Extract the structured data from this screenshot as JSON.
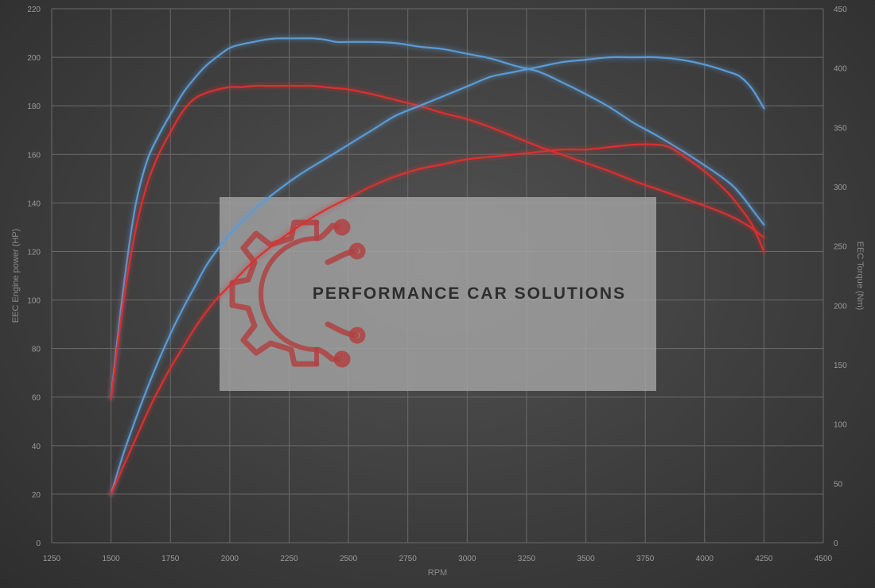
{
  "chart_data": {
    "type": "line",
    "xlabel": "RPM",
    "ylabel": "EEC Engine power (HP)",
    "y2label": "EEC Torque (Nm)",
    "xlim": [
      1250,
      4500
    ],
    "ylim": [
      0,
      220
    ],
    "y2lim": [
      0,
      450
    ],
    "x_ticks": [
      1250,
      1500,
      1750,
      2000,
      2250,
      2500,
      2750,
      3000,
      3250,
      3500,
      3750,
      4000,
      4250,
      4500
    ],
    "y_ticks": [
      0,
      20,
      40,
      60,
      80,
      100,
      120,
      140,
      160,
      180,
      200,
      220
    ],
    "y2_ticks": [
      0,
      50,
      100,
      150,
      200,
      250,
      300,
      350,
      400,
      450
    ],
    "grid": true,
    "series": [
      {
        "axis": "right",
        "color": "#5b9bd5",
        "x": [
          1500,
          1550,
          1600,
          1650,
          1700,
          1750,
          1800,
          1850,
          1900,
          1950,
          2000,
          2050,
          2100,
          2150,
          2200,
          2250,
          2300,
          2350,
          2400,
          2450,
          2500,
          2600,
          2700,
          2800,
          2900,
          3000,
          3100,
          3200,
          3300,
          3400,
          3500,
          3600,
          3700,
          3800,
          3900,
          4000,
          4100,
          4150,
          4200,
          4250
        ],
        "values": [
          123,
          211,
          281,
          321,
          343,
          361,
          378,
          391,
          402,
          410,
          417,
          420,
          422,
          424,
          425,
          425,
          425,
          425,
          424,
          422,
          422,
          422,
          421,
          418,
          416,
          412,
          408,
          402,
          397,
          388,
          378,
          367,
          354,
          343,
          331,
          318,
          304,
          294,
          281,
          268
        ]
      },
      {
        "axis": "right",
        "color": "#d93030",
        "x": [
          1500,
          1550,
          1600,
          1650,
          1700,
          1750,
          1800,
          1850,
          1900,
          1950,
          2000,
          2050,
          2100,
          2150,
          2200,
          2250,
          2300,
          2350,
          2400,
          2450,
          2500,
          2600,
          2700,
          2800,
          2900,
          3000,
          3100,
          3200,
          3300,
          3400,
          3500,
          3600,
          3700,
          3800,
          3900,
          4000,
          4100,
          4150,
          4200,
          4250
        ],
        "values": [
          121,
          200,
          260,
          301,
          327,
          346,
          363,
          374,
          379,
          382,
          384,
          384,
          385,
          385,
          385,
          385,
          385,
          385,
          384,
          383,
          382,
          378,
          373,
          368,
          362,
          357,
          350,
          342,
          334,
          327,
          320,
          313,
          305,
          298,
          291,
          284,
          276,
          271,
          265,
          257
        ]
      },
      {
        "axis": "left",
        "color": "#5b9bd5",
        "x": [
          1500,
          1550,
          1600,
          1650,
          1700,
          1750,
          1800,
          1850,
          1900,
          1950,
          2000,
          2100,
          2200,
          2300,
          2400,
          2500,
          2600,
          2700,
          2800,
          2900,
          3000,
          3100,
          3200,
          3300,
          3400,
          3500,
          3600,
          3700,
          3800,
          3900,
          4000,
          4100,
          4150,
          4200,
          4250
        ],
        "values": [
          20,
          36,
          50,
          63,
          75,
          86,
          96,
          105,
          114,
          121,
          127,
          137,
          145,
          152,
          158,
          164,
          170,
          176,
          180,
          184,
          188,
          192,
          194,
          196,
          198,
          199,
          200,
          200,
          200,
          199,
          197,
          194,
          192,
          187,
          179
        ]
      },
      {
        "axis": "left",
        "color": "#d93030",
        "x": [
          1500,
          1550,
          1600,
          1650,
          1700,
          1750,
          1800,
          1850,
          1900,
          1950,
          2000,
          2100,
          2200,
          2300,
          2400,
          2500,
          2600,
          2700,
          2800,
          2900,
          3000,
          3100,
          3200,
          3300,
          3400,
          3500,
          3600,
          3700,
          3800,
          3850,
          3900,
          4000,
          4100,
          4150,
          4200,
          4250
        ],
        "values": [
          20,
          31,
          42,
          53,
          63,
          72,
          80,
          88,
          95,
          101,
          106,
          116,
          124,
          131,
          137,
          142,
          147,
          151,
          154,
          156,
          158,
          159,
          160,
          161,
          162,
          162,
          163,
          164,
          164,
          163,
          160,
          153,
          144,
          138,
          131,
          120
        ]
      }
    ]
  },
  "watermark": {
    "text": "PERFORMANCE CAR SOLUTIONS",
    "icon": "gear-circuit-icon",
    "icon_color": "#b04242",
    "box_color": "#a8a8a8"
  }
}
